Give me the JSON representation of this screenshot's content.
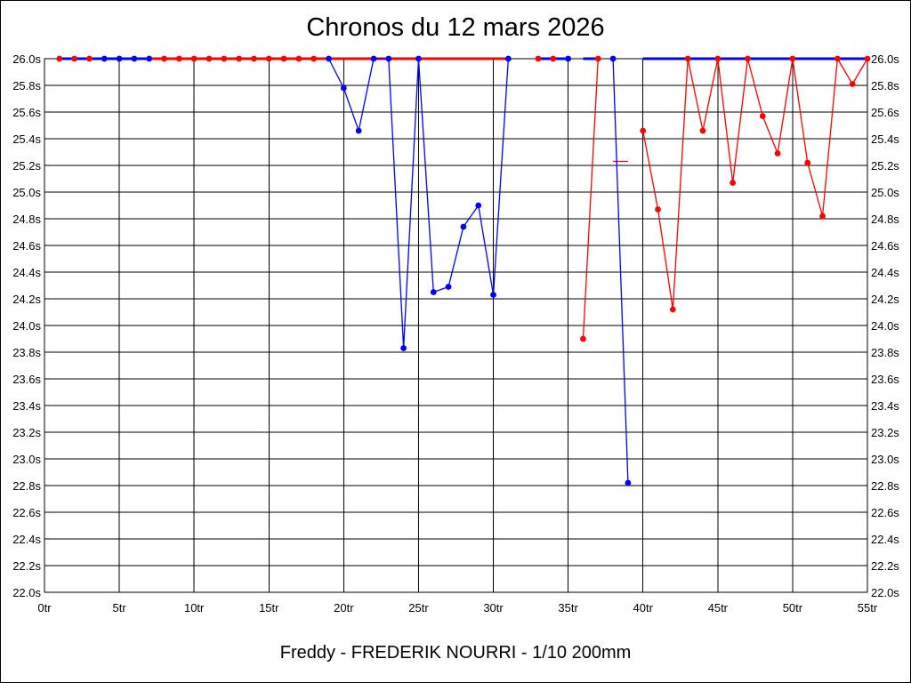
{
  "chart_data": {
    "type": "line",
    "title": "Chronos du 12 mars 2026",
    "caption": "Freddy - FREDERIK NOURRI - 1/10 200mm",
    "xlim": [
      0,
      55
    ],
    "ylim": [
      22.0,
      26.0
    ],
    "grid": true,
    "x_ticks": [
      0,
      5,
      10,
      15,
      20,
      25,
      30,
      35,
      40,
      45,
      50,
      55
    ],
    "x_tick_labels": [
      "0tr",
      "5tr",
      "10tr",
      "15tr",
      "20tr",
      "25tr",
      "30tr",
      "35tr",
      "40tr",
      "45tr",
      "50tr",
      "55tr"
    ],
    "y_ticks": [
      22.0,
      22.2,
      22.4,
      22.6,
      22.8,
      23.0,
      23.2,
      23.4,
      23.6,
      23.8,
      24.0,
      24.2,
      24.4,
      24.6,
      24.8,
      25.0,
      25.2,
      25.4,
      25.6,
      25.8,
      26.0
    ],
    "y_tick_labels": [
      "22.0s",
      "22.2s",
      "22.4s",
      "22.6s",
      "22.8s",
      "23.0s",
      "23.2s",
      "23.4s",
      "23.6s",
      "23.8s",
      "24.0s",
      "24.2s",
      "24.4s",
      "24.6s",
      "24.8s",
      "25.0s",
      "25.2s",
      "25.4s",
      "25.6s",
      "25.8s",
      "26.0s"
    ],
    "series": [
      {
        "color": "#ff0000",
        "segments": [
          [
            [
              1,
              26.0
            ],
            [
              2,
              26.0
            ],
            [
              3,
              26.0
            ],
            [
              4,
              26.0
            ],
            [
              5,
              26.0
            ],
            [
              6,
              26.0
            ],
            [
              7,
              26.0
            ],
            [
              8,
              26.0
            ],
            [
              9,
              26.0
            ],
            [
              10,
              26.0
            ],
            [
              11,
              26.0
            ],
            [
              12,
              26.0
            ],
            [
              13,
              26.0
            ],
            [
              14,
              26.0
            ],
            [
              15,
              26.0
            ],
            [
              16,
              26.0
            ],
            [
              17,
              26.0
            ],
            [
              18,
              26.0
            ],
            [
              19,
              26.0
            ],
            [
              20,
              26.0
            ],
            [
              21,
              26.0
            ],
            [
              22,
              26.0
            ],
            [
              23,
              26.0
            ],
            [
              24,
              26.0
            ],
            [
              25,
              26.0
            ],
            [
              26,
              26.0
            ],
            [
              27,
              26.0
            ],
            [
              28,
              26.0
            ],
            [
              29,
              26.0
            ],
            [
              30,
              26.0
            ],
            [
              31,
              26.0
            ]
          ],
          [
            [
              33,
              26.0
            ],
            [
              34,
              26.0
            ],
            [
              35,
              26.0
            ]
          ],
          [
            [
              36,
              23.9
            ],
            [
              37,
              26.0
            ]
          ],
          [
            [
              37.99,
              25.23
            ],
            [
              39.01,
              25.23
            ]
          ],
          [
            [
              40,
              25.46
            ],
            [
              41,
              24.87
            ],
            [
              42,
              24.12
            ],
            [
              43,
              26.0
            ],
            [
              44,
              25.46
            ],
            [
              45,
              26.0
            ],
            [
              46,
              25.07
            ],
            [
              47,
              26.0
            ],
            [
              48,
              25.57
            ],
            [
              49,
              25.29
            ],
            [
              50,
              26.0
            ],
            [
              51,
              25.22
            ],
            [
              52,
              24.82
            ],
            [
              53,
              26.0
            ],
            [
              54,
              25.81
            ],
            [
              55,
              26.0
            ]
          ]
        ],
        "markers": [
          1,
          2,
          3,
          8,
          9,
          10,
          11,
          12,
          13,
          14,
          15,
          16,
          17,
          18,
          33,
          34,
          36,
          37,
          40,
          41,
          42,
          43,
          44,
          45,
          46,
          47,
          48,
          49,
          50,
          51,
          52,
          53,
          54,
          55
        ]
      },
      {
        "color": "#0000ff",
        "segments": [
          [
            [
              1,
              26.0
            ],
            [
              2,
              26.0
            ],
            [
              3,
              26.0
            ],
            [
              4,
              26.0
            ],
            [
              5,
              26.0
            ],
            [
              6,
              26.0
            ],
            [
              7,
              26.0
            ]
          ],
          [
            [
              19,
              26.0
            ],
            [
              20,
              25.78
            ],
            [
              21,
              25.46
            ],
            [
              22,
              26.0
            ],
            [
              23,
              26.0
            ],
            [
              24,
              23.83
            ],
            [
              25,
              26.0
            ],
            [
              26,
              24.25
            ],
            [
              27,
              24.29
            ],
            [
              28,
              24.74
            ],
            [
              29,
              24.9
            ],
            [
              30,
              24.23
            ],
            [
              31,
              26.0
            ]
          ],
          [
            [
              33,
              26.0
            ],
            [
              34,
              26.0
            ],
            [
              35,
              26.0
            ]
          ],
          [
            [
              36,
              26.0
            ],
            [
              37,
              26.0
            ]
          ],
          [
            [
              38,
              26.0
            ],
            [
              39,
              22.82
            ]
          ],
          [
            [
              40,
              26.0
            ],
            [
              41,
              26.0
            ],
            [
              42,
              26.0
            ],
            [
              43,
              26.0
            ],
            [
              44,
              26.0
            ],
            [
              45,
              26.0
            ],
            [
              46,
              26.0
            ],
            [
              47,
              26.0
            ],
            [
              48,
              26.0
            ],
            [
              49,
              26.0
            ],
            [
              50,
              26.0
            ],
            [
              51,
              26.0
            ],
            [
              52,
              26.0
            ],
            [
              53,
              26.0
            ],
            [
              54,
              26.0
            ],
            [
              55,
              26.0
            ]
          ]
        ],
        "markers": [
          4,
          5,
          6,
          7,
          19,
          20,
          21,
          22,
          23,
          24,
          25,
          26,
          27,
          28,
          29,
          30,
          31,
          35,
          38,
          39
        ]
      }
    ]
  }
}
